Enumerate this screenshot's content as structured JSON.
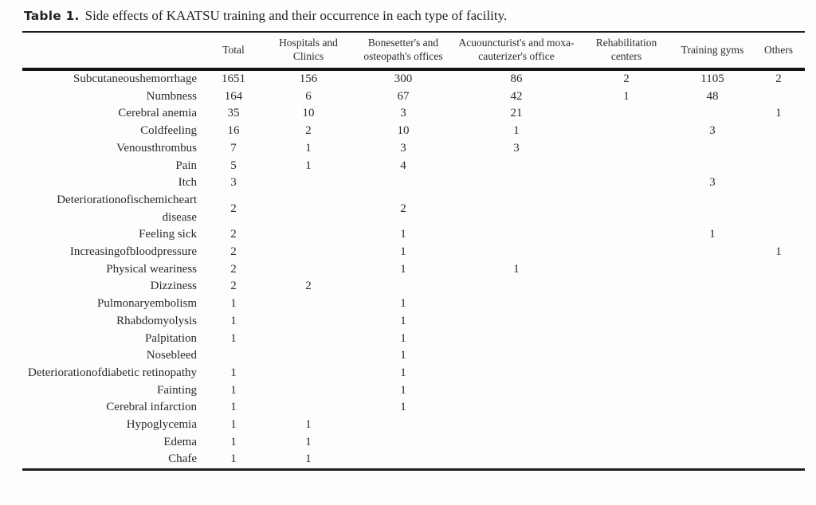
{
  "caption": {
    "label": "Table 1.",
    "text": "Side effects of KAATSU training and their occurrence in each type of facility."
  },
  "colors": {
    "background": "#fdfdfd",
    "text": "#2a2a2a",
    "rule": "#1d1d1d"
  },
  "table": {
    "columns": [
      "",
      "Total",
      "Hospitals and Clinics",
      "Bonesetter's and osteopath's offices",
      "Acuouncturist's and moxa-cauterizer's office",
      "Rehabilitation centers",
      "Training gyms",
      "Others"
    ],
    "rows": [
      {
        "label": "Subcutaneoushemorrhage",
        "values": [
          "1651",
          "156",
          "300",
          "86",
          "2",
          "1105",
          "2"
        ]
      },
      {
        "label": "Numbness",
        "values": [
          "164",
          "6",
          "67",
          "42",
          "1",
          "48",
          ""
        ]
      },
      {
        "label": "Cerebral anemia",
        "values": [
          "35",
          "10",
          "3",
          "21",
          "",
          "",
          "1"
        ]
      },
      {
        "label": "Coldfeeling",
        "values": [
          "16",
          "2",
          "10",
          "1",
          "",
          "3",
          ""
        ]
      },
      {
        "label": "Venousthrombus",
        "values": [
          "7",
          "1",
          "3",
          "3",
          "",
          "",
          ""
        ]
      },
      {
        "label": "Pain",
        "values": [
          "5",
          "1",
          "4",
          "",
          "",
          "",
          ""
        ]
      },
      {
        "label": "Itch",
        "values": [
          "3",
          "",
          "",
          "",
          "",
          "3",
          ""
        ]
      },
      {
        "label": "Deteriorationofischemicheart disease",
        "values": [
          "2",
          "",
          "2",
          "",
          "",
          "",
          ""
        ]
      },
      {
        "label": "Feeling sick",
        "values": [
          "2",
          "",
          "1",
          "",
          "",
          "1",
          ""
        ]
      },
      {
        "label": "Increasingofbloodpressure",
        "values": [
          "2",
          "",
          "1",
          "",
          "",
          "",
          "1"
        ]
      },
      {
        "label": "Physical weariness",
        "values": [
          "2",
          "",
          "1",
          "1",
          "",
          "",
          ""
        ]
      },
      {
        "label": "Dizziness",
        "values": [
          "2",
          "2",
          "",
          "",
          "",
          "",
          ""
        ]
      },
      {
        "label": "Pulmonaryembolism",
        "values": [
          "1",
          "",
          "1",
          "",
          "",
          "",
          ""
        ]
      },
      {
        "label": "Rhabdomyolysis",
        "values": [
          "1",
          "",
          "1",
          "",
          "",
          "",
          ""
        ]
      },
      {
        "label": "Palpitation",
        "values": [
          "1",
          "",
          "1",
          "",
          "",
          "",
          ""
        ]
      },
      {
        "label": "Nosebleed",
        "values": [
          "",
          "",
          "1",
          "",
          "",
          "",
          ""
        ]
      },
      {
        "label": "Deteriorationofdiabetic retinopathy",
        "values": [
          "1",
          "",
          "1",
          "",
          "",
          "",
          ""
        ]
      },
      {
        "label": "Fainting",
        "values": [
          "1",
          "",
          "1",
          "",
          "",
          "",
          ""
        ]
      },
      {
        "label": "Cerebral infarction",
        "values": [
          "1",
          "",
          "1",
          "",
          "",
          "",
          ""
        ]
      },
      {
        "label": "Hypoglycemia",
        "values": [
          "1",
          "1",
          "",
          "",
          "",
          "",
          ""
        ]
      },
      {
        "label": "Edema",
        "values": [
          "1",
          "1",
          "",
          "",
          "",
          "",
          ""
        ]
      },
      {
        "label": "Chafe",
        "values": [
          "1",
          "1",
          "",
          "",
          "",
          "",
          ""
        ]
      }
    ]
  }
}
